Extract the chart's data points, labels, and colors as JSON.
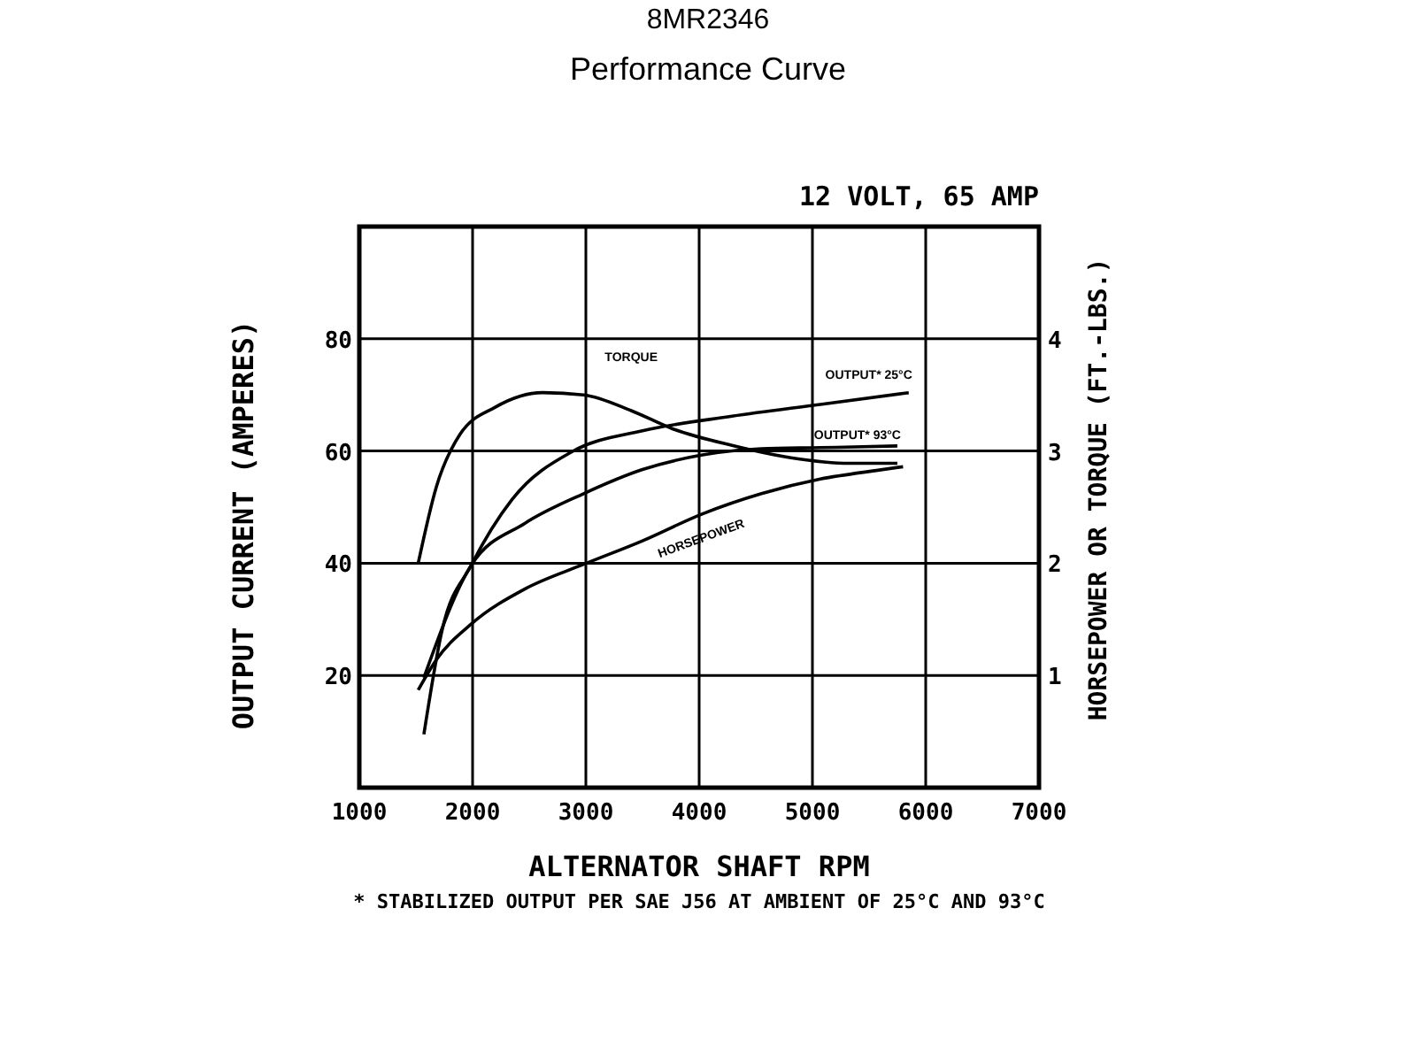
{
  "chart_data": {
    "type": "line",
    "title": "8MR2346",
    "subtitle": "Performance Curve",
    "xlabel": "ALTERNATOR SHAFT RPM",
    "ylabel": "OUTPUT CURRENT (AMPERES)",
    "y2label": "HORSEPOWER OR TORQUE (FT.-LBS.)",
    "annotations": [
      "12 VOLT, 65 AMP",
      "* STABILIZED OUTPUT PER SAE J56 AT AMBIENT OF 25°C AND 93°C"
    ],
    "xlim": [
      1000,
      7000
    ],
    "xticks": [
      1000,
      2000,
      3000,
      4000,
      5000,
      6000,
      7000
    ],
    "ylim": [
      0,
      100
    ],
    "yticks": [
      20,
      40,
      60,
      80
    ],
    "y2lim": [
      0,
      5
    ],
    "y2ticks": [
      1,
      2,
      3,
      4
    ],
    "grid": true,
    "marker": "none",
    "line_style": "solid",
    "series": [
      {
        "name": "TORQUE",
        "color": "#000000",
        "axis": "y2",
        "x": [
          1520,
          1680,
          1890,
          2200,
          2620,
          2980,
          3400,
          3760,
          4290,
          4810,
          5330,
          5750
        ],
        "values": [
          2.0,
          2.68,
          3.15,
          3.39,
          3.52,
          3.5,
          3.36,
          3.2,
          3.05,
          2.94,
          2.89,
          2.89
        ]
      },
      {
        "name": "OUTPUT* 25°C",
        "color": "#000000",
        "x": [
          1570,
          1730,
          1990,
          2350,
          2880,
          3500,
          4290,
          5070,
          5850
        ],
        "values": [
          9.5,
          28,
          39.7,
          51.4,
          59.9,
          63.6,
          66.2,
          68.3,
          70.4
        ]
      },
      {
        "name": "OUTPUT* 93°C",
        "color": "#000000",
        "x": [
          1570,
          1990,
          2460,
          2980,
          3500,
          4030,
          4550,
          5070,
          5750
        ],
        "values": [
          19.6,
          39.7,
          47.1,
          52.4,
          56.7,
          59.3,
          60.4,
          60.6,
          60.9
        ]
      },
      {
        "name": "HORSEPOWER",
        "color": "#000000",
        "axis": "y2",
        "x": [
          1520,
          1680,
          1990,
          2460,
          2980,
          3500,
          4030,
          4550,
          5070,
          5590,
          5800
        ],
        "values": [
          0.87,
          1.14,
          1.46,
          1.77,
          1.99,
          2.2,
          2.44,
          2.62,
          2.75,
          2.83,
          2.86
        ]
      }
    ]
  }
}
